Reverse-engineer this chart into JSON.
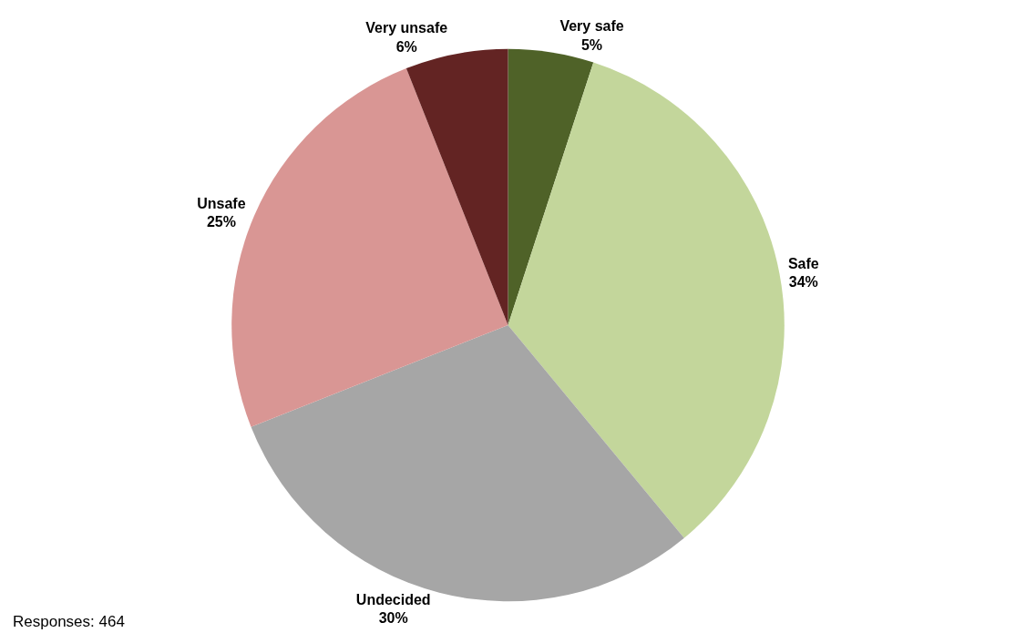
{
  "chart_data": {
    "type": "pie",
    "categories": [
      "Very safe",
      "Safe",
      "Undecided",
      "Unsafe",
      "Very unsafe"
    ],
    "values": [
      5,
      34,
      30,
      25,
      6
    ],
    "value_labels": [
      "5%",
      "34%",
      "30%",
      "25%",
      "6%"
    ],
    "colors": [
      "#4f6228",
      "#c3d69b",
      "#a6a6a6",
      "#d99694",
      "#632423"
    ],
    "annotations": [
      "Responses: 464"
    ],
    "legend": false
  }
}
